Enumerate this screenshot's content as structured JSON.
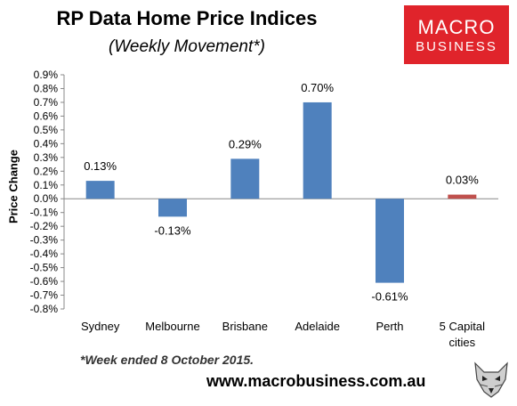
{
  "chart_data": {
    "type": "bar",
    "title": "RP Data Home Price Indices",
    "subtitle": "(Weekly Movement*)",
    "ylabel": "Price Change",
    "xlabel": "",
    "ylim": [
      -0.8,
      0.9
    ],
    "ytick_step": 0.1,
    "ytick_labels": [
      "0.9%",
      "0.8%",
      "0.7%",
      "0.6%",
      "0.5%",
      "0.4%",
      "0.3%",
      "0.2%",
      "0.1%",
      "0.0%",
      "-0.1%",
      "-0.2%",
      "-0.3%",
      "-0.4%",
      "-0.5%",
      "-0.6%",
      "-0.7%",
      "-0.8%"
    ],
    "categories": [
      "Sydney",
      "Melbourne",
      "Brisbane",
      "Adelaide",
      "Perth",
      "5 Capital cities"
    ],
    "values": [
      0.13,
      -0.13,
      0.29,
      0.7,
      -0.61,
      0.03
    ],
    "data_labels": [
      "0.13%",
      "-0.13%",
      "0.29%",
      "0.70%",
      "-0.61%",
      "0.03%"
    ],
    "bar_colors": [
      "#4f81bd",
      "#4f81bd",
      "#4f81bd",
      "#4f81bd",
      "#4f81bd",
      "#c0504d"
    ],
    "grid": false,
    "legend": "none"
  },
  "logo": {
    "line1": "MACRO",
    "line2": "BUSINESS"
  },
  "footnote": "*Week ended 8 October 2015.",
  "url": "www.macrobusiness.com.au",
  "icons": {
    "brand_mark": "wolf-head-icon"
  }
}
